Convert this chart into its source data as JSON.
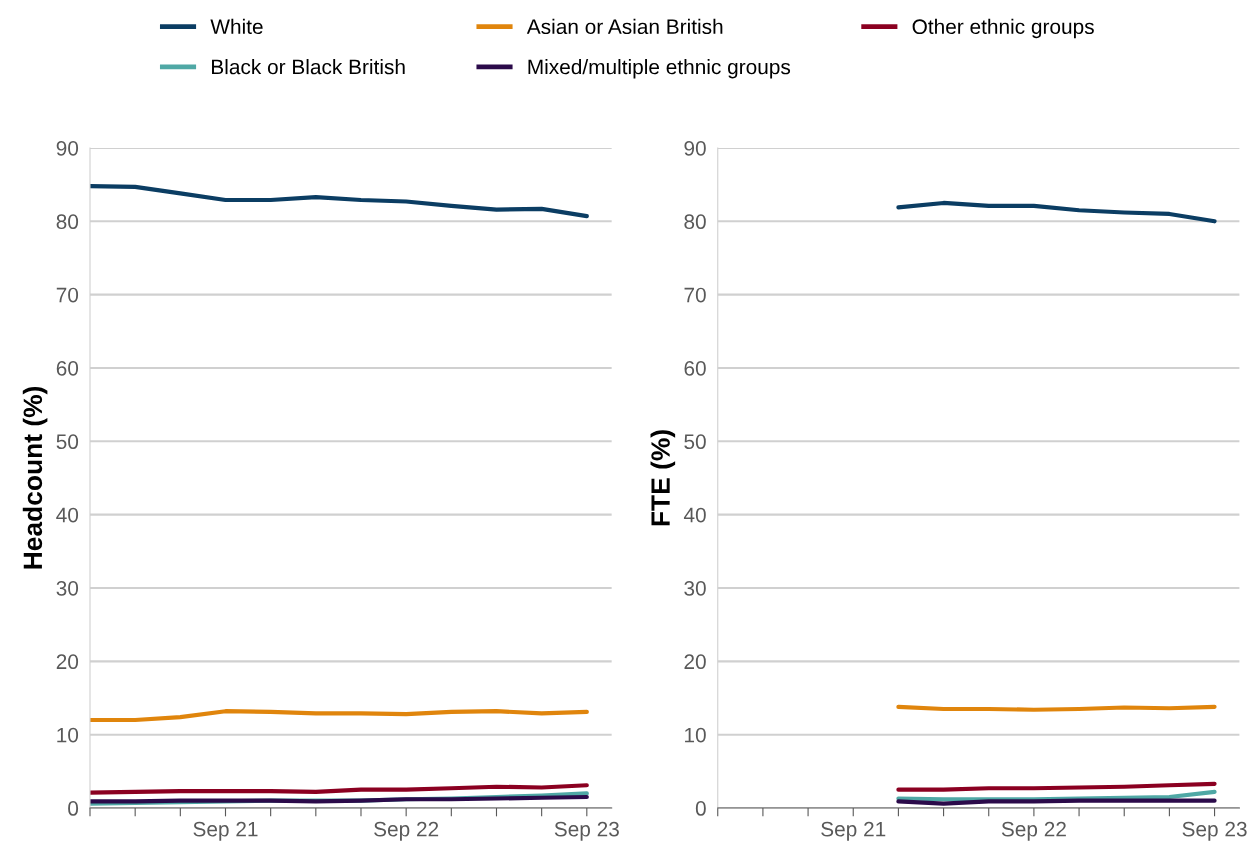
{
  "chart_data": [
    {
      "type": "line",
      "ylabel": "Headcount (%)",
      "categories": [
        null,
        null,
        null,
        "Sep 21",
        null,
        null,
        null,
        "Sep 22",
        null,
        null,
        null,
        "Sep 23"
      ],
      "ylim": [
        0,
        90
      ],
      "yticks": [
        0,
        10,
        20,
        30,
        40,
        50,
        60,
        70,
        80,
        90
      ],
      "grid": "y",
      "legend": "top",
      "marker": "none",
      "line_style": "solid",
      "series": [
        {
          "name": "White",
          "color": "#0b3d63",
          "values": [
            84.8,
            84.7,
            83.8,
            82.9,
            82.9,
            83.3,
            82.9,
            82.7,
            82.1,
            81.6,
            81.7,
            80.7
          ]
        },
        {
          "name": "Black or Black British",
          "color": "#4fa8a5",
          "values": [
            0.6,
            0.7,
            0.8,
            0.9,
            1.0,
            1.0,
            1.0,
            1.2,
            1.3,
            1.5,
            1.7,
            2.0
          ]
        },
        {
          "name": "Asian or Asian British",
          "color": "#e0850c",
          "values": [
            12.0,
            12.0,
            12.4,
            13.2,
            13.1,
            12.9,
            12.9,
            12.8,
            13.1,
            13.2,
            12.9,
            13.1
          ]
        },
        {
          "name": "Mixed/multiple ethnic groups",
          "color": "#2b0a4a",
          "values": [
            0.9,
            0.9,
            1.0,
            1.0,
            1.0,
            0.9,
            1.0,
            1.2,
            1.2,
            1.3,
            1.4,
            1.5
          ]
        },
        {
          "name": "Other ethnic groups",
          "color": "#8b0021",
          "values": [
            2.1,
            2.2,
            2.3,
            2.3,
            2.3,
            2.2,
            2.5,
            2.5,
            2.7,
            2.9,
            2.8,
            3.1
          ]
        }
      ]
    },
    {
      "type": "line",
      "ylabel": "FTE (%)",
      "categories": [
        null,
        null,
        null,
        "Sep 21",
        null,
        null,
        null,
        "Sep 22",
        null,
        null,
        null,
        "Sep 23"
      ],
      "ylim": [
        0,
        90
      ],
      "yticks": [
        0,
        10,
        20,
        30,
        40,
        50,
        60,
        70,
        80,
        90
      ],
      "grid": "y",
      "marker": "none",
      "line_style": "solid",
      "series": [
        {
          "color": "#0b3d63",
          "values": [
            null,
            null,
            null,
            null,
            81.9,
            82.5,
            82.1,
            82.1,
            81.5,
            81.2,
            81.0,
            80.0
          ]
        },
        {
          "color": "#4fa8a5",
          "values": [
            null,
            null,
            null,
            null,
            1.3,
            1.2,
            1.2,
            1.2,
            1.3,
            1.4,
            1.5,
            2.2
          ]
        },
        {
          "color": "#e0850c",
          "values": [
            null,
            null,
            null,
            null,
            13.8,
            13.5,
            13.5,
            13.4,
            13.5,
            13.7,
            13.6,
            13.8
          ]
        },
        {
          "color": "#2b0a4a",
          "values": [
            null,
            null,
            null,
            null,
            0.9,
            0.6,
            0.9,
            0.9,
            1.0,
            1.0,
            1.0,
            1.0
          ]
        },
        {
          "color": "#8b0021",
          "values": [
            null,
            null,
            null,
            null,
            2.5,
            2.5,
            2.7,
            2.7,
            2.8,
            2.9,
            3.1,
            3.3
          ]
        }
      ]
    }
  ]
}
